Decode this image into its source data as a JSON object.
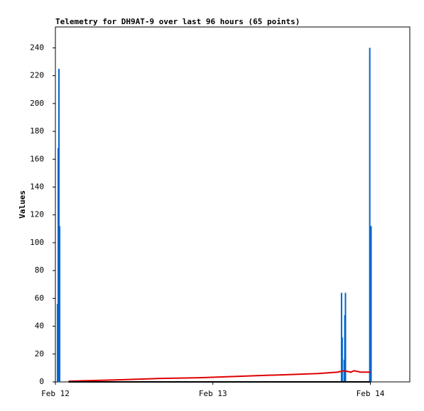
{
  "chart_data": {
    "type": "line",
    "title": "Telemetry for DH9AT-9 over last 96 hours (65 points)",
    "ylabel": "Values",
    "xlim": [
      0,
      54
    ],
    "xticks": [
      {
        "value": 0,
        "label": "Feb 12"
      },
      {
        "value": 24,
        "label": "Feb 13"
      },
      {
        "value": 48,
        "label": "Feb 14"
      }
    ],
    "ylim": [
      0,
      255
    ],
    "yticks": [
      0,
      20,
      40,
      60,
      80,
      100,
      120,
      140,
      160,
      180,
      200,
      220,
      240
    ],
    "series": [
      {
        "color": "#0066cc",
        "style": "impulse",
        "x": [
          0.33,
          0.43,
          0.54,
          0.65,
          43.6,
          43.7,
          44.0,
          44.1,
          44.2,
          47.9,
          48.1
        ],
        "values": [
          56,
          168,
          225,
          112,
          64,
          32,
          16,
          48,
          64,
          240,
          112
        ]
      },
      {
        "color": "#e00000",
        "style": "line",
        "x": [
          2,
          6,
          10,
          16,
          22,
          28,
          34,
          40,
          43,
          44,
          45,
          45.5,
          46.5,
          48
        ],
        "values": [
          0.5,
          1,
          1.5,
          2.5,
          3,
          4,
          5,
          6,
          7,
          8,
          7,
          8,
          7,
          7
        ]
      },
      {
        "color": "#000000",
        "style": "line",
        "x": [
          2,
          48
        ],
        "values": [
          0,
          0
        ]
      }
    ]
  }
}
